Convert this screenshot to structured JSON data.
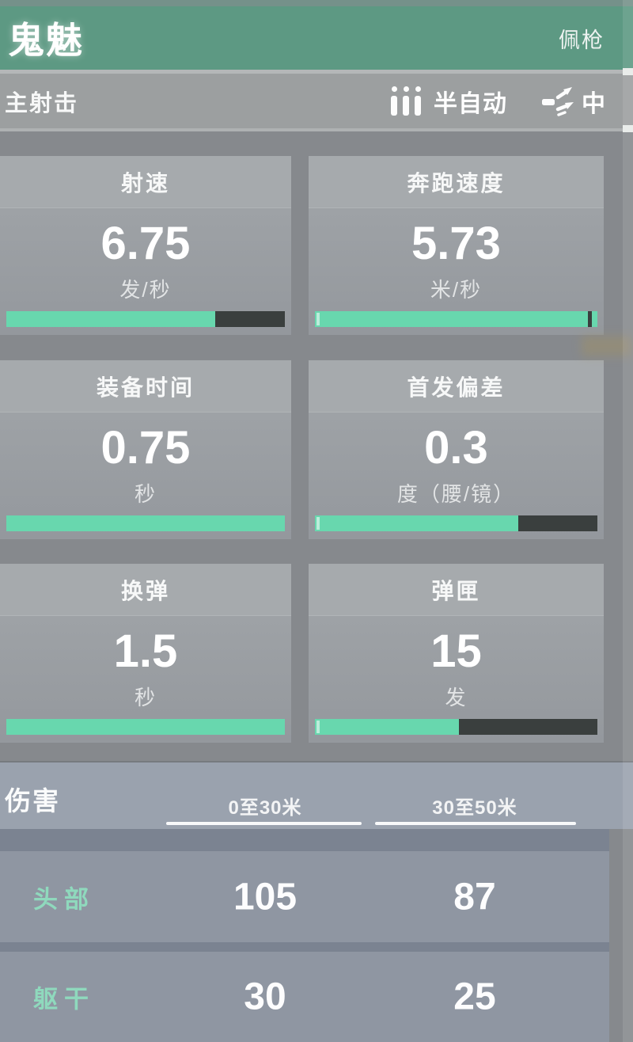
{
  "header": {
    "title": "鬼魅",
    "badge": "佩枪"
  },
  "mode_bar": {
    "label": "主射击",
    "fire_mode_icon": "semi-auto-fire-mode-icon",
    "fire_mode": "半自动",
    "recoil_icon": "recoil-spread-icon",
    "recoil_level": "中"
  },
  "stats": [
    {
      "label": "射速",
      "value": "6.75",
      "unit": "发/秒",
      "percent": 75
    },
    {
      "label": "奔跑速度",
      "value": "5.73",
      "unit": "米/秒",
      "percent": 100
    },
    {
      "label": "装备时间",
      "value": "0.75",
      "unit": "秒",
      "percent": 100
    },
    {
      "label": "首发偏差",
      "value": "0.3",
      "unit": "度（腰/镜）",
      "percent": 72
    },
    {
      "label": "换弹",
      "value": "1.5",
      "unit": "秒",
      "percent": 100
    },
    {
      "label": "弹匣",
      "value": "15",
      "unit": "发",
      "percent": 51
    }
  ],
  "damage": {
    "title": "伤害",
    "columns": [
      "0至30米",
      "30至50米"
    ],
    "rows": [
      {
        "label": "头部",
        "values": [
          "105",
          "87"
        ]
      },
      {
        "label": "躯干",
        "values": [
          "30",
          "25"
        ]
      }
    ]
  },
  "colors": {
    "header_green": "#5d9983",
    "bar_fill": "#68d7ae",
    "bar_track": "#3a3f3e",
    "label_mint": "#8fd9bd"
  }
}
